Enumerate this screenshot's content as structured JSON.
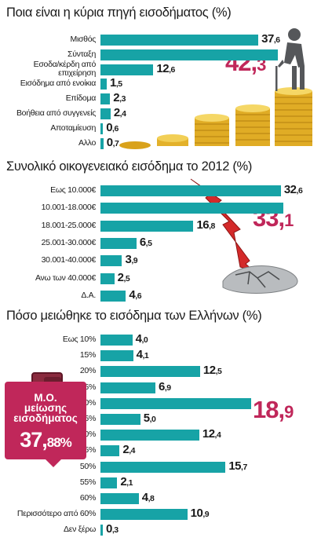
{
  "chart_data": [
    {
      "type": "bar",
      "title": "Ποια είναι η κύρια πηγή εισοδήματος (%)",
      "categories": [
        "Μισθός",
        "Σύνταξη",
        "Εσοδα/κέρδη από επιχείρηση",
        "Εισόδημα από ενοίκια",
        "Επίδομα",
        "Βοήθεια από συγγενείς",
        "Αποταμίευση",
        "Αλλο"
      ],
      "category_lines": [
        [
          "Μισθός"
        ],
        [
          "Σύνταξη"
        ],
        [
          "Εσοδα/κέρδη από",
          "επιχείρηση"
        ],
        [
          "Εισόδημα από ενοίκια"
        ],
        [
          "Επίδομα"
        ],
        [
          "Βοήθεια από συγγενείς"
        ],
        [
          "Αποταμίευση"
        ],
        [
          "Αλλο"
        ]
      ],
      "values": [
        37.6,
        42.3,
        12.6,
        1.5,
        2.3,
        2.4,
        0.6,
        0.7
      ],
      "value_parts": [
        [
          "37",
          "6"
        ],
        [
          "42",
          "3"
        ],
        [
          "12",
          "6"
        ],
        [
          "1",
          "5"
        ],
        [
          "2",
          "3"
        ],
        [
          "2",
          "4"
        ],
        [
          "0",
          "6"
        ],
        [
          "0",
          "7"
        ]
      ],
      "highlight_index": 1,
      "bar_color": "#17a3a6",
      "highlight_color": "#c0275a"
    },
    {
      "type": "bar",
      "title": "Συνολικό οικογενειακό εισόδημα το 2012 (%)",
      "categories": [
        "Εως 10.000€",
        "10.001-18.000€",
        "18.001-25.000€",
        "25.001-30.000€",
        "30.001-40.000€",
        "Ανω των 40.000€",
        "Δ.Α."
      ],
      "category_lines": [
        [
          "Εως 10.000€"
        ],
        [
          "10.001-18.000€"
        ],
        [
          "18.001-25.000€"
        ],
        [
          "25.001-30.000€"
        ],
        [
          "30.001-40.000€"
        ],
        [
          "Ανω των 40.000€"
        ],
        [
          "Δ.Α."
        ]
      ],
      "values": [
        32.6,
        33.1,
        16.8,
        6.5,
        3.9,
        2.5,
        4.6
      ],
      "value_parts": [
        [
          "32",
          "6"
        ],
        [
          "33",
          "1"
        ],
        [
          "16",
          "8"
        ],
        [
          "6",
          "5"
        ],
        [
          "3",
          "9"
        ],
        [
          "2",
          "5"
        ],
        [
          "4",
          "6"
        ]
      ],
      "highlight_index": 1,
      "bar_color": "#17a3a6",
      "highlight_color": "#c0275a"
    },
    {
      "type": "bar",
      "title": "Πόσο μειώθηκε το εισόδημα των Ελλήνων (%)",
      "categories": [
        "Εως 10%",
        "15%",
        "20%",
        "25%",
        "30%",
        "35%",
        "40%",
        "45%",
        "50%",
        "55%",
        "60%",
        "Περισσότερο από 60%",
        "Δεν ξέρω"
      ],
      "category_lines": [
        [
          "Εως 10%"
        ],
        [
          "15%"
        ],
        [
          "20%"
        ],
        [
          "25%"
        ],
        [
          "30%"
        ],
        [
          "35%"
        ],
        [
          "40%"
        ],
        [
          "45%"
        ],
        [
          "50%"
        ],
        [
          "55%"
        ],
        [
          "60%"
        ],
        [
          "Περισσότερο από 60%"
        ],
        [
          "Δεν ξέρω"
        ]
      ],
      "values": [
        4.0,
        4.1,
        12.5,
        6.9,
        18.9,
        5.0,
        12.4,
        2.4,
        15.7,
        2.1,
        4.8,
        10.9,
        0.3
      ],
      "value_parts": [
        [
          "4",
          "0"
        ],
        [
          "4",
          "1"
        ],
        [
          "12",
          "5"
        ],
        [
          "6",
          "9"
        ],
        [
          "18",
          "9"
        ],
        [
          "5",
          "0"
        ],
        [
          "12",
          "4"
        ],
        [
          "2",
          "4"
        ],
        [
          "15",
          "7"
        ],
        [
          "2",
          "1"
        ],
        [
          "4",
          "8"
        ],
        [
          "10",
          "9"
        ],
        [
          "0",
          "3"
        ]
      ],
      "highlight_index": 4,
      "bar_color": "#17a3a6",
      "highlight_color": "#c0275a"
    }
  ],
  "callout": {
    "title_lines": [
      "Μ.Ο.",
      "μείωσης",
      "εισοδήματος"
    ],
    "value_int": "37",
    "value_dec": "88%",
    "color": "#c0275a"
  }
}
